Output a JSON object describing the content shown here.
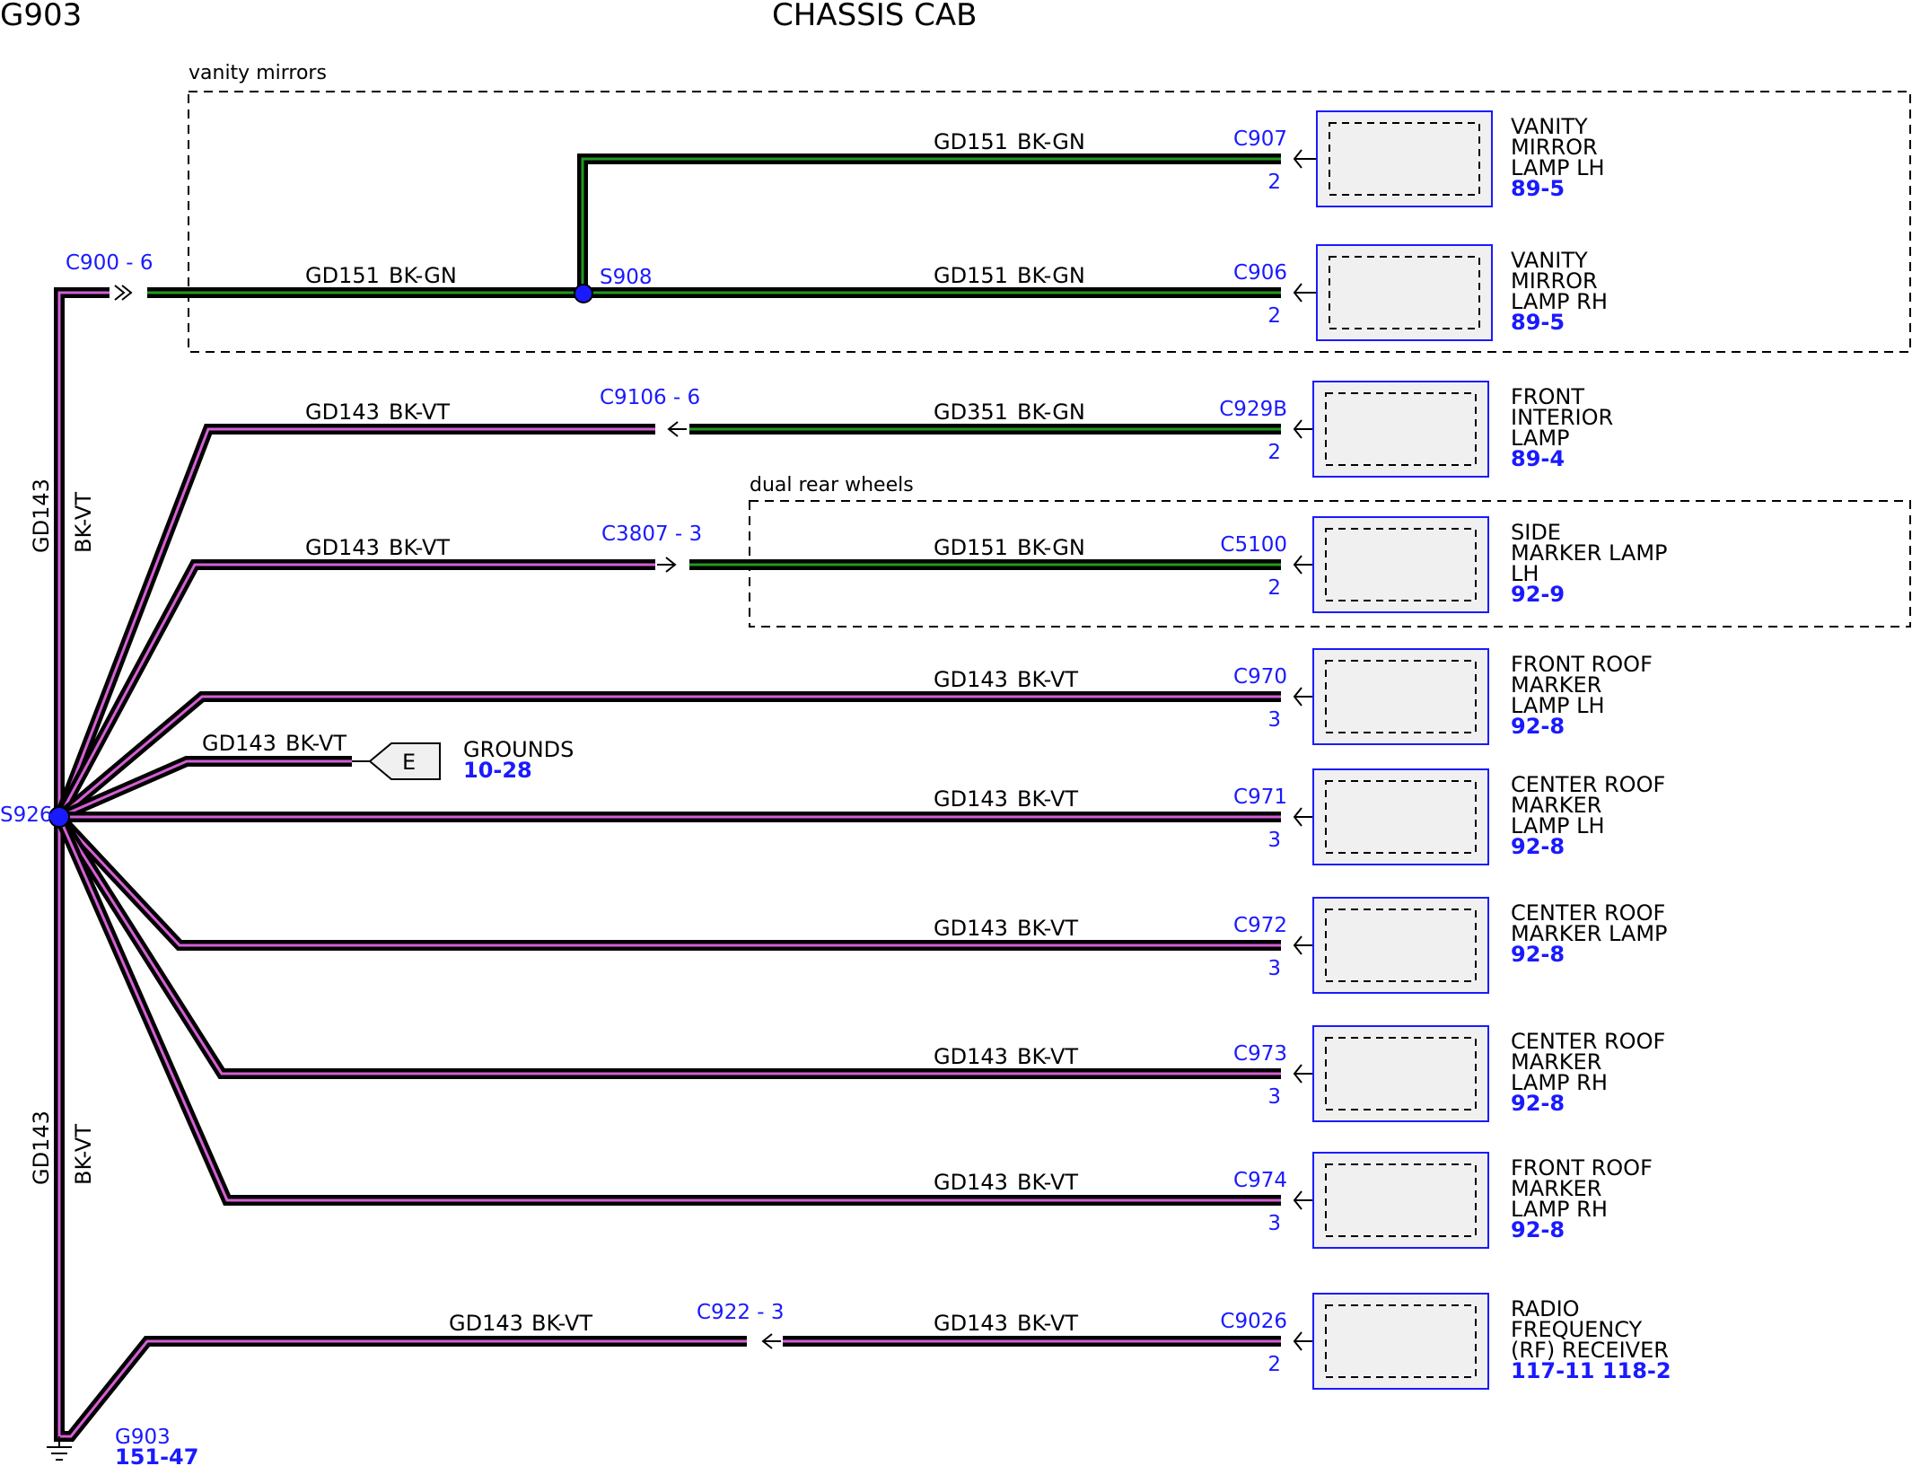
{
  "header": {
    "left": "G903",
    "center": "CHASSIS CAB"
  },
  "regions": {
    "vanity": "vanity mirrors",
    "dual": "dual rear wheels"
  },
  "trunk": {
    "upper_circuit": "GD143",
    "upper_color": "BK-VT",
    "lower_circuit": "GD143",
    "lower_color": "BK-VT"
  },
  "splice_main": "S926",
  "splice_vanity": "S908",
  "conn_c900": "C900 - 6",
  "ground": {
    "label": "G903",
    "ref": "151-47"
  },
  "grounds_tag": {
    "letter": "E",
    "label": "GROUNDS",
    "ref": "10-28",
    "circuit": "GD143",
    "color": "BK-VT"
  },
  "wires": [
    {
      "circuit": "GD151",
      "color": "BK-GN"
    },
    {
      "circuit": "GD151",
      "color": "BK-GN"
    },
    {
      "circuit": "GD151",
      "color": "BK-GN"
    },
    {
      "circuit": "GD143",
      "color": "BK-VT"
    },
    {
      "circuit": "GD351",
      "color": "BK-GN"
    },
    {
      "circuit": "GD143",
      "color": "BK-VT"
    },
    {
      "circuit": "GD151",
      "color": "BK-GN"
    },
    {
      "circuit": "GD143",
      "color": "BK-VT"
    },
    {
      "circuit": "GD143",
      "color": "BK-VT"
    },
    {
      "circuit": "GD143",
      "color": "BK-VT"
    },
    {
      "circuit": "GD143",
      "color": "BK-VT"
    },
    {
      "circuit": "GD143",
      "color": "BK-VT"
    },
    {
      "circuit": "GD143",
      "color": "BK-VT"
    },
    {
      "circuit": "GD143",
      "color": "BK-VT"
    }
  ],
  "inline_connectors": [
    "C9106 - 6",
    "C3807 - 3",
    "C922 - 3"
  ],
  "components": [
    {
      "connector": "C907",
      "pin": "2",
      "name": [
        "VANITY",
        "MIRROR",
        "LAMP LH"
      ],
      "ref": "89-5"
    },
    {
      "connector": "C906",
      "pin": "2",
      "name": [
        "VANITY",
        "MIRROR",
        "LAMP RH"
      ],
      "ref": "89-5"
    },
    {
      "connector": "C929B",
      "pin": "2",
      "name": [
        "FRONT",
        "INTERIOR",
        "LAMP"
      ],
      "ref": "89-4"
    },
    {
      "connector": "C5100",
      "pin": "2",
      "name": [
        "SIDE",
        "MARKER LAMP",
        "LH"
      ],
      "ref": "92-9"
    },
    {
      "connector": "C970",
      "pin": "3",
      "name": [
        "FRONT ROOF",
        "MARKER",
        "LAMP LH"
      ],
      "ref": "92-8"
    },
    {
      "connector": "C971",
      "pin": "3",
      "name": [
        "CENTER ROOF",
        "MARKER",
        "LAMP LH"
      ],
      "ref": "92-8"
    },
    {
      "connector": "C972",
      "pin": "3",
      "name": [
        "CENTER ROOF",
        "MARKER LAMP"
      ],
      "ref": "92-8"
    },
    {
      "connector": "C973",
      "pin": "3",
      "name": [
        "CENTER ROOF",
        "MARKER",
        "LAMP RH"
      ],
      "ref": "92-8"
    },
    {
      "connector": "C974",
      "pin": "3",
      "name": [
        "FRONT ROOF",
        "MARKER",
        "LAMP RH"
      ],
      "ref": "92-8"
    },
    {
      "connector": "C9026",
      "pin": "2",
      "name": [
        "RADIO",
        "FREQUENCY",
        "(RF) RECEIVER"
      ],
      "ref": "117-11  118-2"
    }
  ],
  "colors": {
    "bk_vt_stripe": "#d45fd4",
    "bk_gn_stripe": "#1f9a1f",
    "label_blue": "#1a1aff",
    "box_fill": "#f0f0f0"
  }
}
